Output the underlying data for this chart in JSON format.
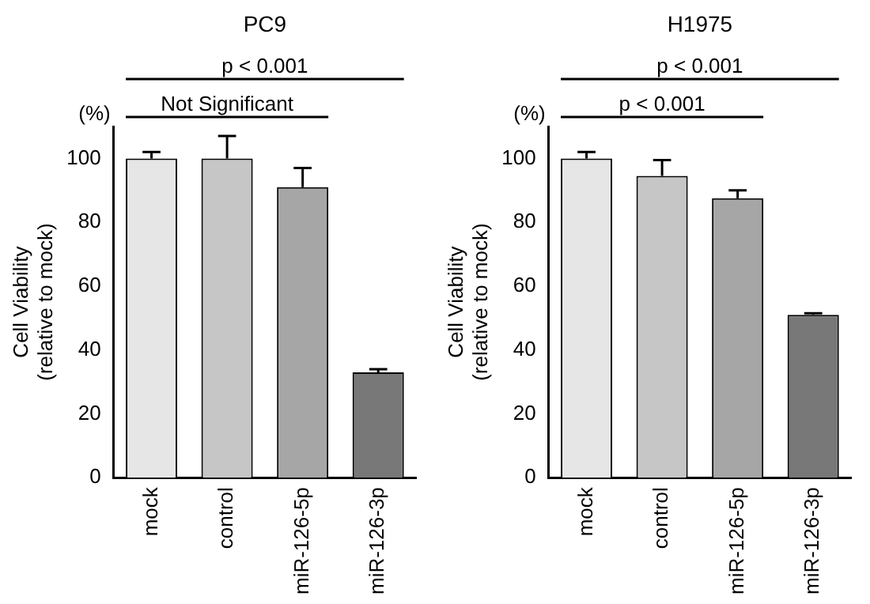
{
  "chart_data": [
    {
      "type": "bar",
      "title": "PC9",
      "ylabel": [
        "Cell Viability",
        "(relative to mock)"
      ],
      "categories": [
        "mock",
        "control",
        "miR-126-5p",
        "miR-126-3p"
      ],
      "values": [
        100,
        100,
        91,
        33
      ],
      "colors": [
        "#e6e6e6",
        "#c6c6c6",
        "#a6a6a6",
        "#787878"
      ],
      "errors": [
        [
          100,
          102
        ],
        [
          100,
          107
        ],
        [
          91,
          97
        ],
        [
          33,
          34
        ]
      ],
      "ylim": [
        0,
        110
      ],
      "yticks": [
        0,
        20,
        40,
        60,
        80,
        100
      ],
      "grid": false,
      "legend": false,
      "annotations": [
        "p < 0.001",
        "Not Significant",
        "(%)"
      ]
    },
    {
      "type": "bar",
      "title": "H1975",
      "ylabel": [
        "Cell Viability",
        "(relative to mock)"
      ],
      "categories": [
        "mock",
        "control",
        "miR-126-5p",
        "miR-126-3p"
      ],
      "values": [
        100,
        94.5,
        87.5,
        51
      ],
      "colors": [
        "#e6e6e6",
        "#c6c6c6",
        "#a6a6a6",
        "#787878"
      ],
      "errors": [
        [
          100,
          102
        ],
        [
          94.5,
          99.5
        ],
        [
          87.5,
          90
        ],
        [
          51,
          51.5
        ]
      ],
      "ylim": [
        0,
        110
      ],
      "yticks": [
        0,
        20,
        40,
        60,
        80,
        100
      ],
      "grid": false,
      "legend": false,
      "annotations": [
        "p < 0.001",
        "p < 0.001",
        "(%)"
      ]
    }
  ]
}
